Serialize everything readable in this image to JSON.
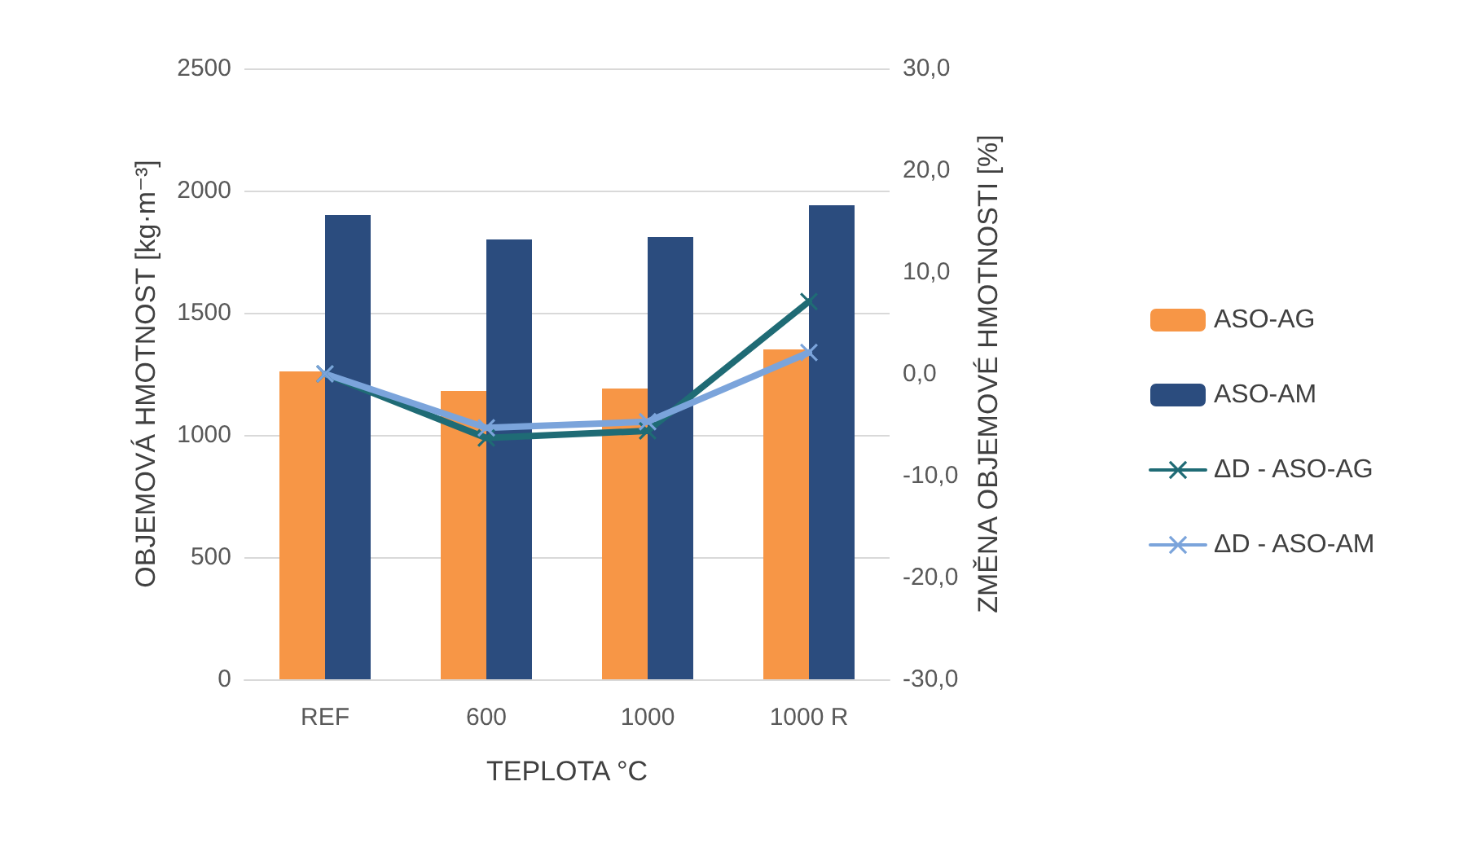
{
  "chart_data": {
    "type": "bar",
    "categories": [
      "REF",
      "600",
      "1000",
      "1000 R"
    ],
    "xlabel": "TEPLOTA °C",
    "ylabel": "OBJEMOVÁ HMOTNOST [kg·m⁻³]",
    "y2label": "ZMĚNA OBJEMOVÉ HMOTNOSTI [%]",
    "series": [
      {
        "name": "ASO-AG",
        "color": "#f79646",
        "values": [
          1260,
          1180,
          1190,
          1350
        ]
      },
      {
        "name": "ASO-AM",
        "color": "#2b4c7e",
        "values": [
          1900,
          1800,
          1810,
          1940
        ]
      },
      {
        "name": "ΔD - ASO-AG",
        "type": "line",
        "axis": "y2",
        "color": "#1f6b75",
        "values": [
          0,
          -6.3,
          -5.6,
          7.1
        ]
      },
      {
        "name": "ΔD - ASO-AM",
        "type": "line",
        "axis": "y2",
        "color": "#7ba4db",
        "values": [
          0,
          -5.3,
          -4.7,
          2.1
        ]
      }
    ],
    "ylim": [
      0,
      2500
    ],
    "yticks": [
      0,
      500,
      1000,
      1500,
      2000,
      2500
    ],
    "y2lim": [
      -30,
      30
    ],
    "y2ticks": [
      {
        "value": -30,
        "label": "-30,0"
      },
      {
        "value": -20,
        "label": "-20,0"
      },
      {
        "value": -10,
        "label": "-10,0"
      },
      {
        "value": 0,
        "label": "0,0"
      },
      {
        "value": 10,
        "label": "10,0"
      },
      {
        "value": 20,
        "label": "20,0"
      },
      {
        "value": 30,
        "label": "30,0"
      }
    ],
    "grid": "y",
    "legend": "right",
    "marker": "cross",
    "line_style": "solid"
  }
}
